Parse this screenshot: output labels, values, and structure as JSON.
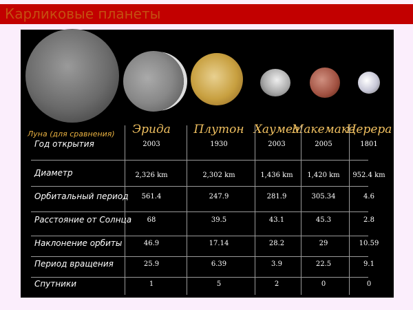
{
  "title": "Карликовые планеты",
  "colors": {
    "title_bar": "#c20000",
    "title_text": "#c45010",
    "background": "#fbeefc",
    "header_text": "#f0c060"
  },
  "moon_label": "Луна (для сравнения)",
  "columns": [
    "Эрида",
    "Плутон",
    "Хаумеа",
    "Макемаке",
    "Церера"
  ],
  "rows": [
    {
      "label": "Год открытия",
      "values": [
        "2003",
        "1930",
        "2003",
        "2005",
        "1801"
      ]
    },
    {
      "label": "Диаметр",
      "values": [
        "2,326 km",
        "2,302 km",
        "1,436 km",
        "1,420 km",
        "952.4 km"
      ]
    },
    {
      "label": "Орбитальный период",
      "values": [
        "561.4",
        "247.9",
        "281.9",
        "305.34",
        "4.6"
      ]
    },
    {
      "label": "Расстояние от Солнца",
      "values": [
        "68",
        "39.5",
        "43.1",
        "45.3",
        "2.8"
      ]
    },
    {
      "label": "Наклонение орбиты",
      "values": [
        "46.9",
        "17.14",
        "28.2",
        "29",
        "10.59"
      ]
    },
    {
      "label": "Период вращения",
      "values": [
        "25.9",
        "6.39",
        "3.9",
        "22.5",
        "9.1"
      ]
    },
    {
      "label": "Спутники",
      "values": [
        "1",
        "5",
        "2",
        "0",
        "0"
      ]
    }
  ]
}
